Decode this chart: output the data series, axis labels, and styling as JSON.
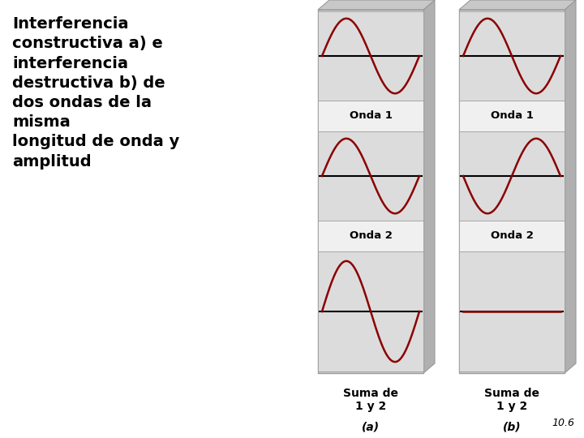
{
  "title_text": "Interferencia\nconstructiva a) e\ninterferencia\ndestructiva b) de\ndos ondas de la\nmisma\nlongitud de onda y\namplitud",
  "wave_color": "#8B0000",
  "bg_color": "#ffffff",
  "panel_face_color": "#dcdcdc",
  "panel_label_bg": "#e8e8e8",
  "panel_side_color": "#b0b0b0",
  "panel_top_color": "#c8c8c8",
  "panel_edge_color": "#999999",
  "axis_line_color": "#000000",
  "label_onda1": "Onda 1",
  "label_onda2": "Onda 2",
  "label_suma": "Suma de\n1 y 2",
  "label_a": "(a)",
  "label_b": "(b)",
  "page_num": "10.6",
  "amplitude": 1.0
}
